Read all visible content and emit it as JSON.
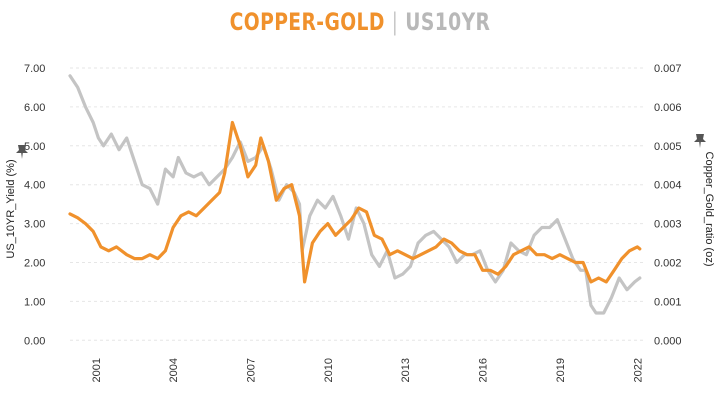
{
  "chart_data": {
    "type": "line",
    "title": {
      "left": "COPPER-GOLD",
      "separator": "|",
      "right": "US10YR"
    },
    "xlabel": "",
    "x_ticks": [
      "2001",
      "2004",
      "2007",
      "2010",
      "2013",
      "2016",
      "2019",
      "2022"
    ],
    "xlim": [
      2000.0,
      2022.3
    ],
    "y_left": {
      "label": "US_10YR_Yield (%)",
      "ticks": [
        "7.00",
        "6.00",
        "5.00",
        "4.00",
        "3.00",
        "2.00",
        "1.00",
        "0.00"
      ],
      "ylim": [
        -0.25,
        7.0
      ]
    },
    "y_right": {
      "label": "Copper_Gold_ratio (oz)",
      "ticks": [
        "0.007",
        "0.006",
        "0.005",
        "0.004",
        "0.003",
        "0.002",
        "0.001",
        "0.000"
      ],
      "ylim": [
        -0.00025,
        0.007
      ]
    },
    "grid": "horizontal-dashed",
    "colors": {
      "yield": "#c4c4c4",
      "ratio": "#f0912c",
      "grid": "#e6e6e6",
      "pin": "#555555"
    },
    "series": [
      {
        "axis": "left",
        "x": [
          2000.0,
          2000.3,
          2000.6,
          2000.9,
          2001.1,
          2001.3,
          2001.6,
          2001.9,
          2002.2,
          2002.5,
          2002.8,
          2003.1,
          2003.4,
          2003.7,
          2004.0,
          2004.2,
          2004.5,
          2004.8,
          2005.1,
          2005.4,
          2005.7,
          2006.0,
          2006.3,
          2006.6,
          2006.9,
          2007.2,
          2007.5,
          2007.8,
          2008.1,
          2008.4,
          2008.7,
          2008.9,
          2009.0,
          2009.3,
          2009.6,
          2009.9,
          2010.2,
          2010.5,
          2010.8,
          2011.1,
          2011.4,
          2011.7,
          2012.0,
          2012.3,
          2012.6,
          2012.9,
          2013.2,
          2013.5,
          2013.8,
          2014.1,
          2014.4,
          2014.7,
          2015.0,
          2015.3,
          2015.6,
          2015.9,
          2016.2,
          2016.5,
          2016.8,
          2017.1,
          2017.4,
          2017.7,
          2018.0,
          2018.3,
          2018.6,
          2018.9,
          2019.2,
          2019.5,
          2019.8,
          2020.0,
          2020.2,
          2020.4,
          2020.7,
          2021.0,
          2021.3,
          2021.6,
          2021.9,
          2022.1
        ],
        "values": [
          6.8,
          6.5,
          6.0,
          5.6,
          5.2,
          5.0,
          5.3,
          4.9,
          5.2,
          4.6,
          4.0,
          3.9,
          3.5,
          4.4,
          4.2,
          4.7,
          4.3,
          4.2,
          4.3,
          4.0,
          4.2,
          4.4,
          4.7,
          5.1,
          4.6,
          4.7,
          5.0,
          4.4,
          3.6,
          4.0,
          3.8,
          3.5,
          2.3,
          3.2,
          3.6,
          3.4,
          3.7,
          3.2,
          2.6,
          3.4,
          3.0,
          2.2,
          1.9,
          2.3,
          1.6,
          1.7,
          1.9,
          2.5,
          2.7,
          2.8,
          2.6,
          2.4,
          2.0,
          2.2,
          2.2,
          2.3,
          1.8,
          1.5,
          1.8,
          2.5,
          2.3,
          2.2,
          2.7,
          2.9,
          2.9,
          3.1,
          2.6,
          2.1,
          1.8,
          1.8,
          0.9,
          0.7,
          0.7,
          1.1,
          1.6,
          1.3,
          1.5,
          1.6
        ]
      },
      {
        "axis": "right",
        "x": [
          2000.0,
          2000.3,
          2000.6,
          2000.9,
          2001.2,
          2001.5,
          2001.8,
          2002.2,
          2002.5,
          2002.8,
          2003.1,
          2003.4,
          2003.7,
          2004.0,
          2004.3,
          2004.6,
          2004.9,
          2005.2,
          2005.5,
          2005.8,
          2006.0,
          2006.3,
          2006.6,
          2006.9,
          2007.2,
          2007.4,
          2007.7,
          2008.0,
          2008.3,
          2008.6,
          2008.9,
          2009.1,
          2009.4,
          2009.7,
          2010.0,
          2010.3,
          2010.6,
          2010.9,
          2011.2,
          2011.5,
          2011.8,
          2012.1,
          2012.4,
          2012.7,
          2013.0,
          2013.3,
          2013.6,
          2013.9,
          2014.2,
          2014.5,
          2014.8,
          2015.1,
          2015.4,
          2015.7,
          2016.0,
          2016.3,
          2016.6,
          2016.9,
          2017.2,
          2017.5,
          2017.8,
          2018.1,
          2018.4,
          2018.7,
          2019.0,
          2019.3,
          2019.6,
          2019.9,
          2020.2,
          2020.5,
          2020.8,
          2021.1,
          2021.4,
          2021.7,
          2022.0,
          2022.1
        ],
        "values": [
          0.00325,
          0.00315,
          0.003,
          0.0028,
          0.0024,
          0.0023,
          0.0024,
          0.0022,
          0.0021,
          0.0021,
          0.0022,
          0.0021,
          0.0023,
          0.0029,
          0.0032,
          0.0033,
          0.0032,
          0.0034,
          0.0036,
          0.0038,
          0.0043,
          0.0056,
          0.005,
          0.0042,
          0.0045,
          0.0052,
          0.0046,
          0.0036,
          0.0039,
          0.004,
          0.0032,
          0.0015,
          0.0025,
          0.0028,
          0.003,
          0.0027,
          0.0029,
          0.0031,
          0.0034,
          0.0033,
          0.0027,
          0.0026,
          0.0022,
          0.0023,
          0.0022,
          0.0021,
          0.0022,
          0.0023,
          0.0024,
          0.0026,
          0.0025,
          0.0023,
          0.0022,
          0.0022,
          0.0018,
          0.0018,
          0.0017,
          0.0019,
          0.0022,
          0.0023,
          0.0024,
          0.0022,
          0.0022,
          0.0021,
          0.0022,
          0.0021,
          0.002,
          0.002,
          0.0015,
          0.0016,
          0.0015,
          0.0018,
          0.0021,
          0.0023,
          0.0024,
          0.00235
        ]
      }
    ]
  }
}
